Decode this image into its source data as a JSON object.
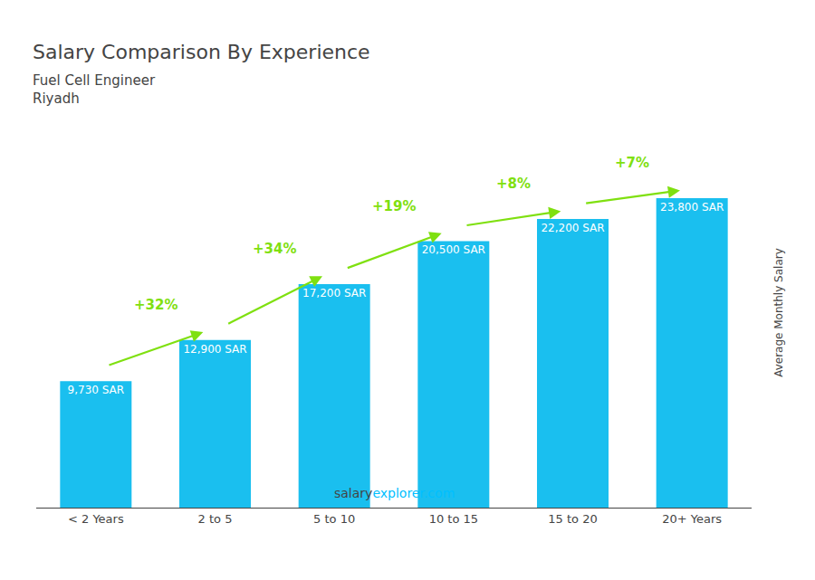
{
  "chart_data": {
    "type": "bar",
    "title": "Salary Comparison By Experience",
    "subtitle": [
      "Fuel Cell Engineer",
      "Riyadh"
    ],
    "categories": [
      "< 2 Years",
      "2 to 5",
      "5 to 10",
      "10 to 15",
      "15 to 20",
      "20+ Years"
    ],
    "values": [
      9730,
      12900,
      17200,
      20500,
      22200,
      23800
    ],
    "value_labels": [
      "9,730 SAR",
      "12,900 SAR",
      "17,200 SAR",
      "20,500 SAR",
      "22,200 SAR",
      "23,800 SAR"
    ],
    "data_labels": true,
    "color": "#1ABFEF",
    "ylabel": "Average Monthly Salary",
    "ylim": [
      0,
      30000
    ],
    "tick_labels": "x",
    "grid": false,
    "annotations": [
      {
        "text": "+32%",
        "from": "< 2 Years",
        "to": "2 to 5",
        "color": "#7FE010"
      },
      {
        "text": "+34%",
        "from": "2 to 5",
        "to": "5 to 10",
        "color": "#7FE010"
      },
      {
        "text": "+19%",
        "from": "5 to 10",
        "to": "10 to 15",
        "color": "#7FE010"
      },
      {
        "text": "+8%",
        "from": "10 to 15",
        "to": "15 to 20",
        "color": "#7FE010"
      },
      {
        "text": "+7%",
        "from": "15 to 20",
        "to": "20+ Years",
        "color": "#7FE010"
      }
    ],
    "footer": [
      {
        "text": "salary"
      },
      {
        "text": "explorer.com",
        "color": "#00BFFF"
      }
    ]
  }
}
